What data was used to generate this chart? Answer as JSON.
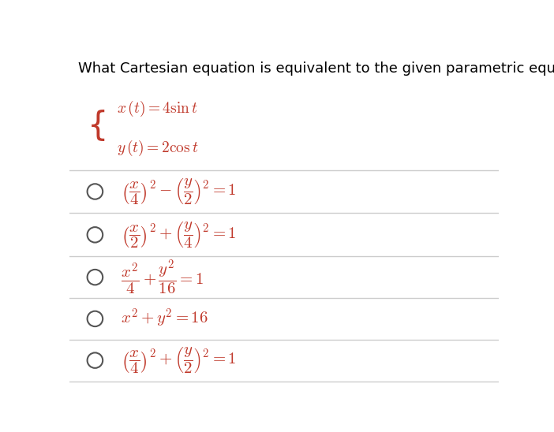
{
  "title": "What Cartesian equation is equivalent to the given parametric equations?",
  "title_fontsize": 13,
  "bg_color": "#ffffff",
  "system_line1": "$x\\,(t) = 4\\sin t$",
  "system_line2": "$y\\,(t) = 2\\cos t$",
  "options": [
    "$\\left(\\dfrac{x}{4}\\right)^2 - \\left(\\dfrac{y}{2}\\right)^2 = 1$",
    "$\\left(\\dfrac{x}{2}\\right)^2 + \\left(\\dfrac{y}{4}\\right)^2 = 1$",
    "$\\dfrac{x^2}{4} + \\dfrac{y^2}{16} = 1$",
    "$x^2 + y^2 = 16$",
    "$\\left(\\dfrac{x}{4}\\right)^2 + \\left(\\dfrac{y}{2}\\right)^2 = 1$"
  ],
  "option_fontsize": 15,
  "math_color": "#c0392b",
  "text_color": "#000000",
  "line_color": "#cccccc",
  "radio_color": "#555555",
  "brace_fontsize": 30
}
